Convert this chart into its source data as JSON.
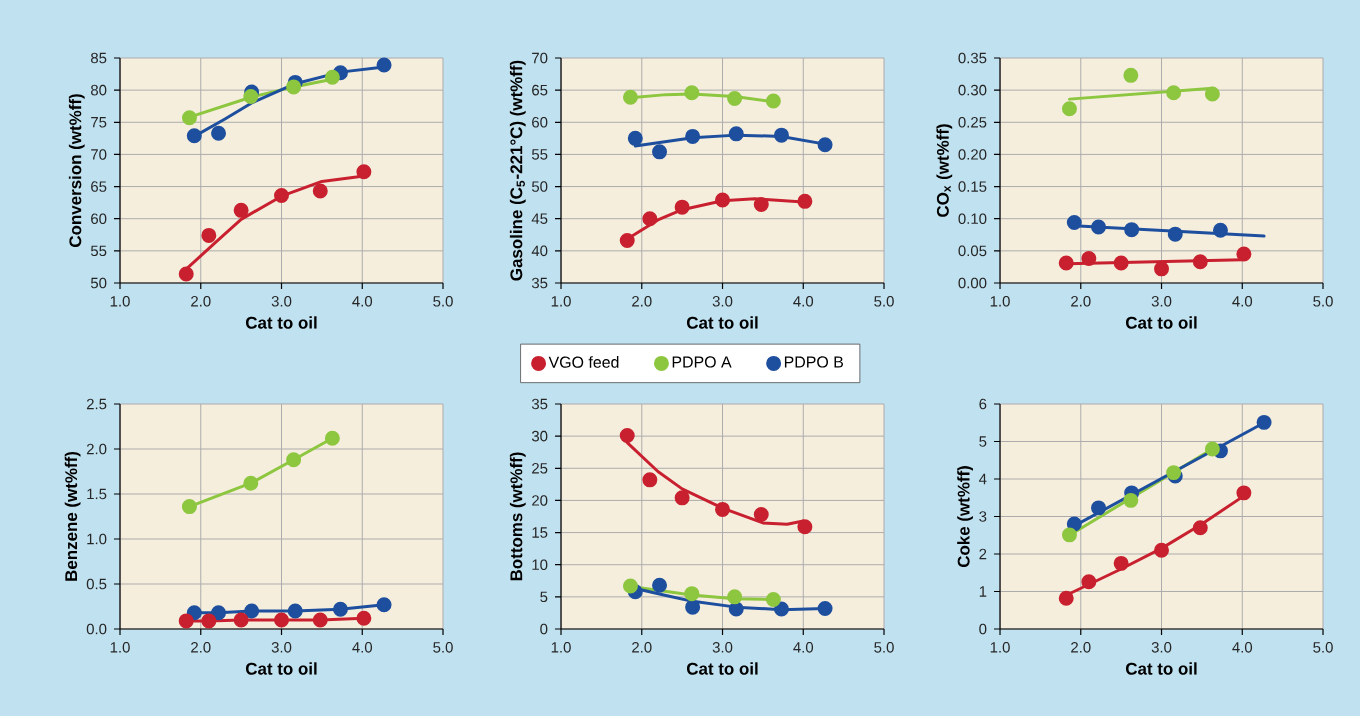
{
  "chart_data": [
    {
      "type": "scatter",
      "xlabel": "Cat to oil",
      "ylabel": "Conversion (wt%ff)",
      "xlim": [
        1,
        5
      ],
      "ylim": [
        50,
        85
      ],
      "grid": true,
      "xticks": [
        {
          "value": 1,
          "label": "1.0"
        },
        {
          "value": 2,
          "label": "2.0"
        },
        {
          "value": 3,
          "label": "3.0"
        },
        {
          "value": 4,
          "label": "4.0"
        },
        {
          "value": 5,
          "label": "5.0"
        }
      ],
      "yticks": [
        50,
        55,
        60,
        65,
        70,
        75,
        80,
        85
      ],
      "series": [
        {
          "type": "line",
          "color": "#c8202f",
          "x": [
            1.84,
            2.2,
            2.5,
            3.0,
            3.5,
            4.0
          ],
          "values": [
            52.4,
            56.5,
            59.9,
            63.5,
            65.8,
            66.6
          ]
        },
        {
          "type": "line",
          "color": "#8dc63f",
          "x": [
            1.86,
            2.62,
            3.15,
            3.63
          ],
          "values": [
            75.8,
            78.9,
            80.5,
            81.7
          ]
        },
        {
          "type": "line",
          "color": "#1d4f9e",
          "x": [
            1.92,
            2.3,
            2.63,
            3.17,
            3.73,
            4.27
          ],
          "values": [
            72.8,
            75.5,
            78.0,
            81.0,
            82.8,
            83.6
          ]
        },
        {
          "color": "#c8202f",
          "x": [
            1.82,
            2.1,
            2.5,
            3.0,
            3.48,
            4.02
          ],
          "values": [
            51.4,
            57.4,
            61.3,
            63.6,
            64.3,
            67.3
          ]
        },
        {
          "color": "#8dc63f",
          "x": [
            1.86,
            2.62,
            3.15,
            3.63
          ],
          "values": [
            75.7,
            79.0,
            80.5,
            82.0
          ]
        },
        {
          "color": "#1d4f9e",
          "x": [
            1.92,
            2.22,
            2.63,
            3.17,
            3.73,
            4.27
          ],
          "values": [
            72.9,
            73.3,
            79.7,
            81.2,
            82.7,
            83.9
          ]
        }
      ]
    },
    {
      "type": "scatter",
      "xlabel": "Cat to oil",
      "ylabel": "Gasoline (C$_{5}$-221°C) (wt%ff)",
      "xlim": [
        1,
        5
      ],
      "ylim": [
        35,
        70
      ],
      "grid": true,
      "legend": "bottom",
      "xticks": [
        {
          "value": 1,
          "label": "1.0"
        },
        {
          "value": 2,
          "label": "2.0"
        },
        {
          "value": 3,
          "label": "3.0"
        },
        {
          "value": 4,
          "label": "4.0"
        },
        {
          "value": 5,
          "label": "5.0"
        }
      ],
      "yticks": [
        35,
        40,
        45,
        50,
        55,
        60,
        65,
        70
      ],
      "series": [
        {
          "type": "line",
          "color": "#c8202f",
          "x": [
            1.84,
            2.2,
            2.5,
            3.0,
            3.4,
            4.0
          ],
          "values": [
            42.0,
            44.8,
            46.4,
            47.8,
            48.1,
            47.6
          ]
        },
        {
          "type": "line",
          "color": "#8dc63f",
          "x": [
            1.86,
            2.3,
            2.62,
            3.15,
            3.63
          ],
          "values": [
            63.8,
            64.3,
            64.4,
            64.0,
            63.2
          ]
        },
        {
          "type": "line",
          "color": "#1d4f9e",
          "x": [
            1.92,
            2.63,
            3.17,
            3.73,
            4.27
          ],
          "values": [
            56.3,
            57.6,
            58.0,
            57.8,
            56.6
          ]
        },
        {
          "name": "VGO feed",
          "color": "#c8202f",
          "x": [
            1.82,
            2.1,
            2.5,
            3.0,
            3.48,
            4.02
          ],
          "values": [
            41.6,
            45.0,
            46.8,
            47.9,
            47.2,
            47.7
          ]
        },
        {
          "name": "PDPO A",
          "color": "#8dc63f",
          "x": [
            1.86,
            2.62,
            3.15,
            3.63
          ],
          "values": [
            63.9,
            64.6,
            63.7,
            63.3
          ]
        },
        {
          "name": "PDPO B",
          "color": "#1d4f9e",
          "x": [
            1.92,
            2.22,
            2.63,
            3.17,
            3.73,
            4.27
          ],
          "values": [
            57.5,
            55.4,
            57.8,
            58.2,
            58.0,
            56.5
          ]
        }
      ]
    },
    {
      "type": "scatter",
      "xlabel": "Cat to oil",
      "ylabel": "CO$_{x}$ (wt%ff)",
      "xlim": [
        1,
        5
      ],
      "ylim": [
        0,
        0.35
      ],
      "grid": true,
      "xticks": [
        {
          "value": 1,
          "label": "1.0"
        },
        {
          "value": 2,
          "label": "2.0"
        },
        {
          "value": 3,
          "label": "3.0"
        },
        {
          "value": 4,
          "label": "4.0"
        },
        {
          "value": 5,
          "label": "5.0"
        }
      ],
      "yticks": [
        {
          "value": 0,
          "label": "0.00"
        },
        {
          "value": 0.05,
          "label": "0.05"
        },
        {
          "value": 0.1,
          "label": "0.10"
        },
        {
          "value": 0.15,
          "label": "0.15"
        },
        {
          "value": 0.2,
          "label": "0.20"
        },
        {
          "value": 0.25,
          "label": "0.25"
        },
        {
          "value": 0.3,
          "label": "0.30"
        },
        {
          "value": 0.35,
          "label": "0.35"
        }
      ],
      "series": [
        {
          "type": "line",
          "color": "#c8202f",
          "x": [
            1.84,
            4.0
          ],
          "values": [
            0.03,
            0.036
          ]
        },
        {
          "type": "line",
          "color": "#8dc63f",
          "x": [
            1.86,
            3.63
          ],
          "values": [
            0.286,
            0.303
          ]
        },
        {
          "type": "line",
          "color": "#1d4f9e",
          "x": [
            1.92,
            4.27
          ],
          "values": [
            0.089,
            0.073
          ]
        },
        {
          "color": "#c8202f",
          "x": [
            1.82,
            2.1,
            2.5,
            3.0,
            3.48,
            4.02
          ],
          "values": [
            0.031,
            0.038,
            0.031,
            0.022,
            0.033,
            0.045
          ]
        },
        {
          "color": "#8dc63f",
          "x": [
            1.86,
            2.62,
            3.15,
            3.63
          ],
          "values": [
            0.271,
            0.323,
            0.296,
            0.294
          ]
        },
        {
          "color": "#1d4f9e",
          "x": [
            1.92,
            2.22,
            2.63,
            3.17,
            3.73
          ],
          "values": [
            0.094,
            0.087,
            0.083,
            0.076,
            0.082
          ]
        }
      ]
    },
    {
      "type": "scatter",
      "xlabel": "Cat to oil",
      "ylabel": "Benzene (wt%ff)",
      "xlim": [
        1,
        5
      ],
      "ylim": [
        0,
        2.5
      ],
      "grid": true,
      "xticks": [
        {
          "value": 1,
          "label": "1.0"
        },
        {
          "value": 2,
          "label": "2.0"
        },
        {
          "value": 3,
          "label": "3.0"
        },
        {
          "value": 4,
          "label": "4.0"
        },
        {
          "value": 5,
          "label": "5.0"
        }
      ],
      "yticks": [
        {
          "value": 0,
          "label": "0.0"
        },
        {
          "value": 0.5,
          "label": "0.5"
        },
        {
          "value": 1,
          "label": "1.0"
        },
        {
          "value": 1.5,
          "label": "1.5"
        },
        {
          "value": 2,
          "label": "2.0"
        },
        {
          "value": 2.5,
          "label": "2.5"
        }
      ],
      "series": [
        {
          "type": "line",
          "color": "#c8202f",
          "x": [
            1.82,
            2.1,
            2.5,
            3.0,
            3.48,
            4.02
          ],
          "values": [
            0.09,
            0.09,
            0.1,
            0.1,
            0.1,
            0.12
          ]
        },
        {
          "type": "line",
          "color": "#8dc63f",
          "x": [
            1.86,
            2.62,
            3.15,
            3.63
          ],
          "values": [
            1.36,
            1.62,
            1.88,
            2.12
          ]
        },
        {
          "type": "line",
          "color": "#1d4f9e",
          "x": [
            1.92,
            2.22,
            2.63,
            3.17,
            3.73,
            4.27
          ],
          "values": [
            0.18,
            0.18,
            0.2,
            0.2,
            0.22,
            0.27
          ]
        },
        {
          "color": "#c8202f",
          "x": [
            1.82,
            2.1,
            2.5,
            3.0,
            3.48,
            4.02
          ],
          "values": [
            0.09,
            0.09,
            0.1,
            0.1,
            0.1,
            0.12
          ]
        },
        {
          "color": "#8dc63f",
          "x": [
            1.86,
            2.62,
            3.15,
            3.63
          ],
          "values": [
            1.36,
            1.62,
            1.88,
            2.12
          ]
        },
        {
          "color": "#1d4f9e",
          "x": [
            1.92,
            2.22,
            2.63,
            3.17,
            3.73,
            4.27
          ],
          "values": [
            0.18,
            0.18,
            0.2,
            0.2,
            0.22,
            0.27
          ]
        }
      ]
    },
    {
      "type": "scatter",
      "xlabel": "Cat to oil",
      "ylabel": "Bottoms (wt%ff)",
      "xlim": [
        1,
        5
      ],
      "ylim": [
        0,
        35
      ],
      "grid": true,
      "xticks": [
        {
          "value": 1,
          "label": "1.0"
        },
        {
          "value": 2,
          "label": "2.0"
        },
        {
          "value": 3,
          "label": "3.0"
        },
        {
          "value": 4,
          "label": "4.0"
        },
        {
          "value": 5,
          "label": "5.0"
        }
      ],
      "yticks": [
        0,
        5,
        10,
        15,
        20,
        25,
        30,
        35
      ],
      "series": [
        {
          "type": "line",
          "color": "#c8202f",
          "x": [
            1.82,
            2.2,
            2.5,
            3.0,
            3.5,
            3.8,
            4.0
          ],
          "values": [
            29.0,
            24.5,
            21.8,
            18.8,
            16.5,
            16.3,
            16.8
          ]
        },
        {
          "type": "line",
          "color": "#8dc63f",
          "x": [
            1.86,
            2.62,
            3.15,
            3.63
          ],
          "values": [
            6.6,
            5.3,
            4.7,
            4.6
          ]
        },
        {
          "type": "line",
          "color": "#1d4f9e",
          "x": [
            1.92,
            2.3,
            2.63,
            3.17,
            3.73,
            4.27
          ],
          "values": [
            6.3,
            5.2,
            4.3,
            3.4,
            3.0,
            3.2
          ]
        },
        {
          "color": "#c8202f",
          "x": [
            1.82,
            2.1,
            2.5,
            3.0,
            3.48,
            4.02
          ],
          "values": [
            30.1,
            23.2,
            20.4,
            18.6,
            17.8,
            15.9
          ]
        },
        {
          "color": "#8dc63f",
          "x": [
            1.86,
            2.62,
            3.15,
            3.63
          ],
          "values": [
            6.7,
            5.5,
            5.0,
            4.6
          ]
        },
        {
          "color": "#1d4f9e",
          "x": [
            1.92,
            2.22,
            2.63,
            3.17,
            3.73,
            4.27
          ],
          "values": [
            5.8,
            6.8,
            3.4,
            3.1,
            3.1,
            3.2
          ]
        }
      ]
    },
    {
      "type": "scatter",
      "xlabel": "Cat to oil",
      "ylabel": "Coke (wt%ff)",
      "xlim": [
        1,
        5
      ],
      "ylim": [
        0,
        6
      ],
      "grid": true,
      "xticks": [
        {
          "value": 1,
          "label": "1.0"
        },
        {
          "value": 2,
          "label": "2.0"
        },
        {
          "value": 3,
          "label": "3.0"
        },
        {
          "value": 4,
          "label": "4.0"
        },
        {
          "value": 5,
          "label": "5.0"
        }
      ],
      "yticks": [
        0,
        1,
        2,
        3,
        4,
        5,
        6
      ],
      "series": [
        {
          "type": "line",
          "color": "#c8202f",
          "x": [
            1.82,
            2.5,
            3.0,
            3.5,
            4.02
          ],
          "values": [
            0.9,
            1.6,
            2.15,
            2.8,
            3.55
          ]
        },
        {
          "type": "line",
          "color": "#8dc63f",
          "x": [
            1.86,
            3.63
          ],
          "values": [
            2.5,
            4.8
          ]
        },
        {
          "type": "line",
          "color": "#1d4f9e",
          "x": [
            1.92,
            4.27
          ],
          "values": [
            2.75,
            5.5
          ]
        },
        {
          "color": "#c8202f",
          "x": [
            1.82,
            2.1,
            2.5,
            3.0,
            3.48,
            4.02
          ],
          "values": [
            0.82,
            1.26,
            1.75,
            2.1,
            2.7,
            3.63
          ]
        },
        {
          "color": "#8dc63f",
          "x": [
            1.86,
            2.62,
            3.15,
            3.63
          ],
          "values": [
            2.51,
            3.43,
            4.17,
            4.8
          ]
        },
        {
          "color": "#1d4f9e",
          "x": [
            1.92,
            2.22,
            2.63,
            3.17,
            3.73,
            4.27
          ],
          "values": [
            2.8,
            3.23,
            3.63,
            4.08,
            4.75,
            5.51
          ]
        }
      ]
    }
  ]
}
